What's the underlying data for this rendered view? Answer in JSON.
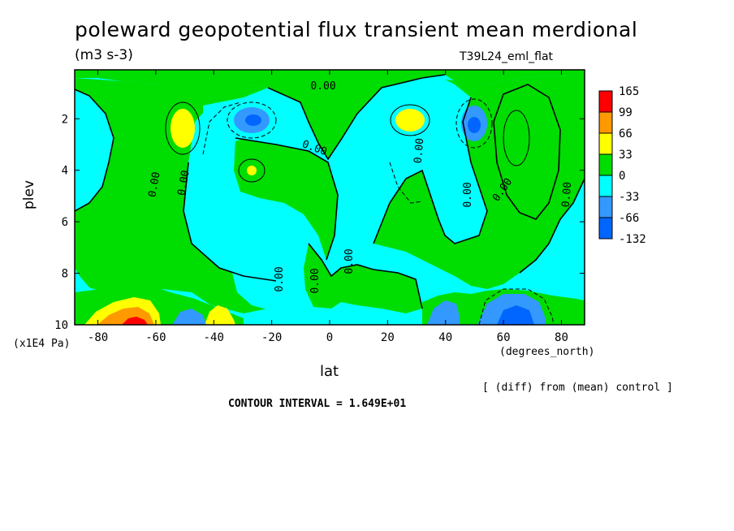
{
  "header": {
    "title": "poleward geopotential flux transient mean merdional",
    "units": "(m3 s-3)",
    "run_label": "T39L24_eml_flat"
  },
  "footer": {
    "diff_note": "[ (diff) from (mean) control ]",
    "contour_interval": "CONTOUR INTERVAL = 1.649E+01"
  },
  "colors": {
    "level_165": "#ff0000",
    "level_99": "#ff9900",
    "level_66": "#ffff00",
    "level_33": "#00dd00",
    "level_0": "#00ffff",
    "level_m33": "#3399ff",
    "level_m66": "#0066ff",
    "frame": "#000000"
  },
  "chart_data": {
    "type": "heatmap",
    "title": "poleward geopotential flux transient mean merdional",
    "subtitle": "(m3 s-3)",
    "xlabel": "lat",
    "x_units": "(degrees_north)",
    "ylabel": "plev",
    "y_units": "(x1E4 Pa)",
    "xlim": [
      -88,
      88
    ],
    "ylim": [
      0.1,
      10
    ],
    "y_inverted": true,
    "x_ticks": [
      -80,
      -60,
      -40,
      -20,
      0,
      20,
      40,
      60,
      80
    ],
    "y_ticks": [
      2,
      4,
      6,
      8,
      10
    ],
    "colorbar_levels": [
      "165",
      "99",
      "66",
      "33",
      "0",
      "-33",
      "-66",
      "-132"
    ],
    "contour_interval": 16.49,
    "contour_labels": [
      "0.00",
      "0.00",
      "0.00",
      "0.00",
      "0.00",
      "0.00",
      "0.00",
      "0.00",
      "0.00",
      "0.00",
      "0.00"
    ],
    "features": [
      {
        "kind": "max",
        "lat": -50,
        "plev": 2.3,
        "level": "33"
      },
      {
        "kind": "max",
        "lat": -28,
        "plev": 4.0,
        "level": "33"
      },
      {
        "kind": "max",
        "lat": 28,
        "plev": 2.0,
        "level": "33"
      },
      {
        "kind": "min",
        "lat": -27,
        "plev": 2.1,
        "level": "-66"
      },
      {
        "kind": "min",
        "lat": 52,
        "plev": 2.3,
        "level": "-33"
      },
      {
        "kind": "max",
        "lat": -67,
        "plev": 9.8,
        "level": "165"
      },
      {
        "kind": "max",
        "lat": -38,
        "plev": 9.6,
        "level": "66"
      },
      {
        "kind": "min",
        "lat": -40,
        "plev": 9.9,
        "level": "-33"
      },
      {
        "kind": "min",
        "lat": 44,
        "plev": 9.6,
        "level": "-66"
      },
      {
        "kind": "min",
        "lat": 64,
        "plev": 9.6,
        "level": "-66"
      }
    ],
    "grid": false,
    "legend": "colorbar-right"
  }
}
